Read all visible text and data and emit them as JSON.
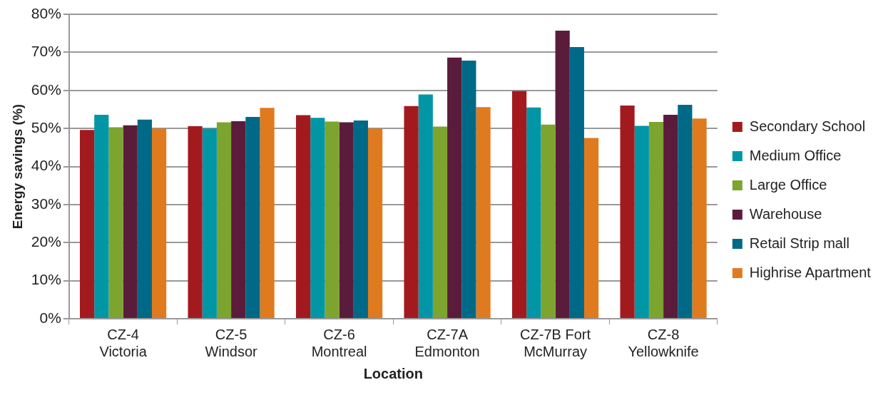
{
  "chart_data": {
    "type": "bar",
    "xlabel": "Location",
    "ylabel": "Energy savings (%)",
    "categories": [
      "CZ-4 Victoria",
      "CZ-5 Windsor",
      "CZ-6 Montreal",
      "CZ-7A Edmonton",
      "CZ-7B Fort McMurray",
      "CZ-8 Yellowknife"
    ],
    "series": [
      {
        "name": "Secondary School",
        "color": "#a31a1e",
        "values": [
          49.6,
          50.6,
          53.5,
          55.9,
          59.8,
          56.0
        ]
      },
      {
        "name": "Medium Office",
        "color": "#0096a6",
        "values": [
          53.6,
          50.0,
          52.8,
          58.9,
          55.5,
          50.7
        ]
      },
      {
        "name": "Large Office",
        "color": "#7ca42e",
        "values": [
          50.3,
          51.6,
          51.8,
          50.5,
          51.0,
          51.7
        ]
      },
      {
        "name": "Warehouse",
        "color": "#5a1c3a",
        "values": [
          50.8,
          51.9,
          51.6,
          68.6,
          75.7,
          53.6
        ]
      },
      {
        "name": "Retail Strip mall",
        "color": "#006987",
        "values": [
          52.3,
          53.0,
          52.1,
          67.8,
          71.4,
          56.2
        ]
      },
      {
        "name": "Highrise Apartment",
        "color": "#e07a1f",
        "values": [
          50.0,
          55.4,
          50.0,
          55.6,
          47.5,
          52.6
        ]
      }
    ],
    "ylim": [
      0,
      80
    ],
    "yticks": [
      {
        "value": 0,
        "label": "0%"
      },
      {
        "value": 10,
        "label": "10%"
      },
      {
        "value": 20,
        "label": "20%"
      },
      {
        "value": 30,
        "label": "30%"
      },
      {
        "value": 40,
        "label": "40%"
      },
      {
        "value": 50,
        "label": "50%"
      },
      {
        "value": 60,
        "label": "60%"
      },
      {
        "value": 70,
        "label": "70%"
      },
      {
        "value": 80,
        "label": "80%"
      }
    ],
    "grid": "y",
    "legend": "right"
  }
}
